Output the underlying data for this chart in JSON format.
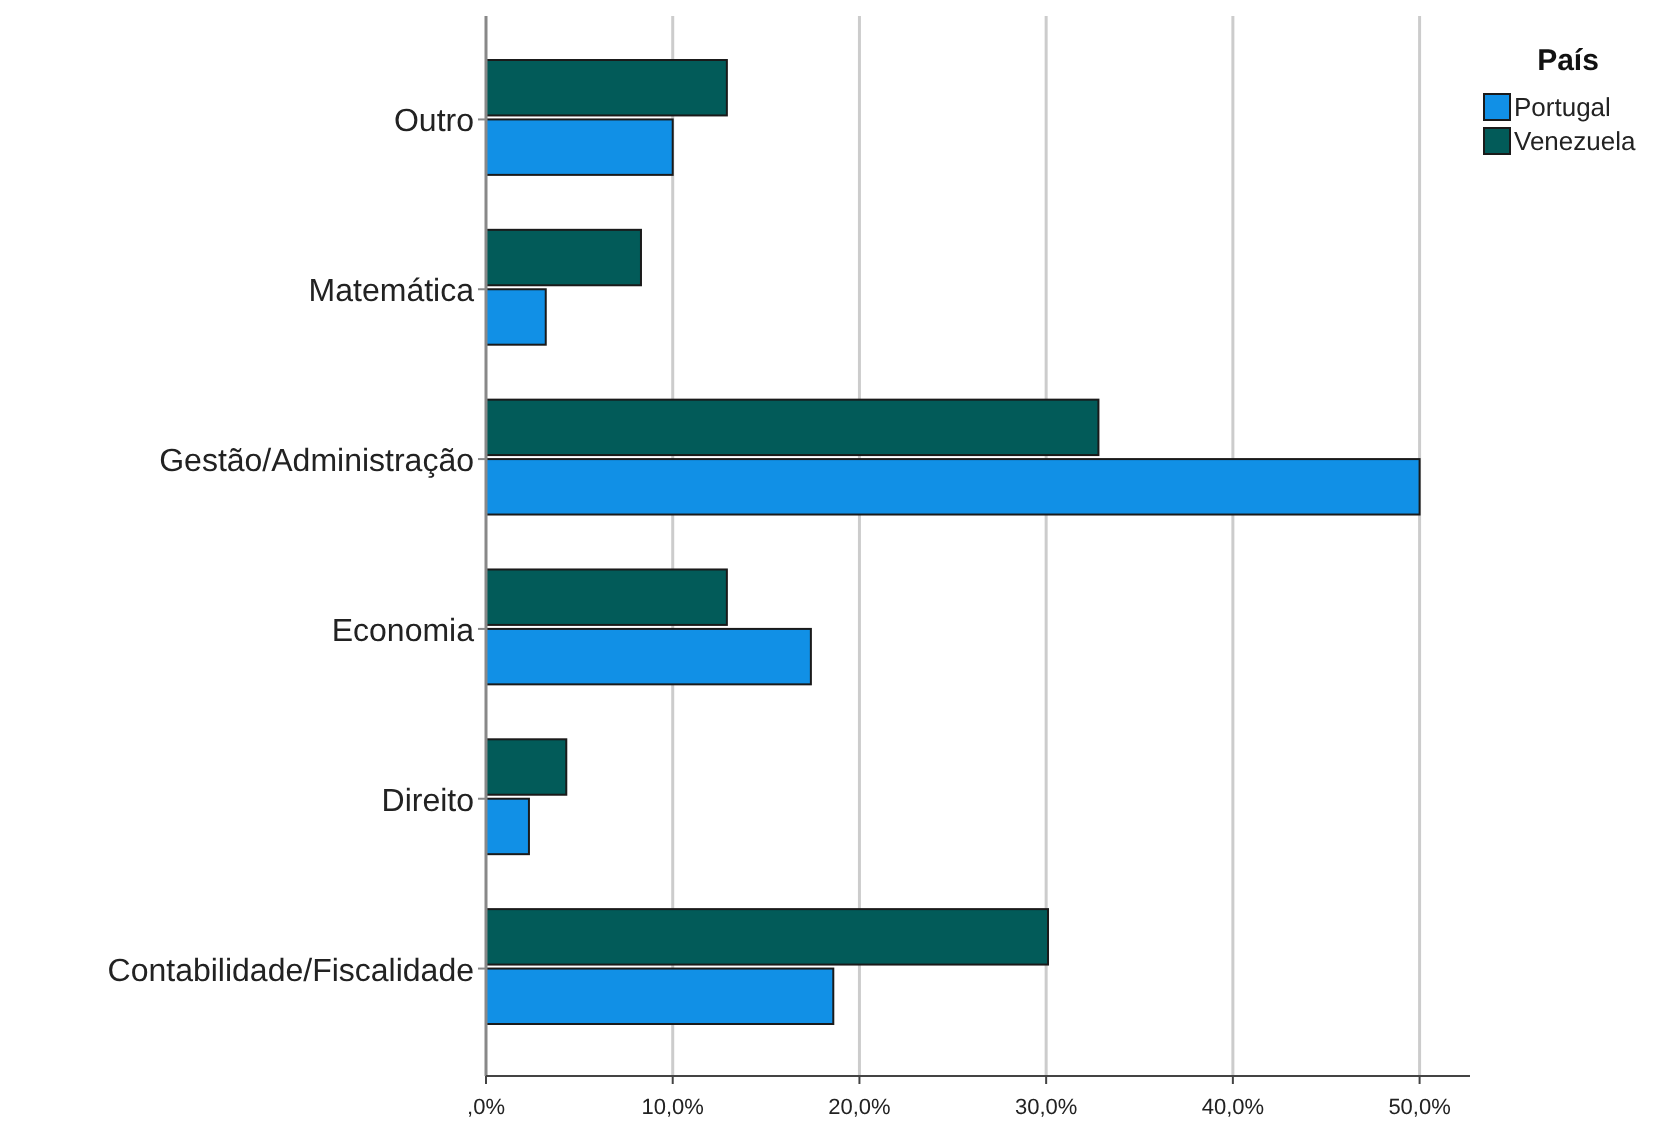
{
  "chart_data": {
    "type": "bar",
    "orientation": "horizontal",
    "categories": [
      "Outro",
      "Matemática",
      "Gestão/Administração",
      "Economia",
      "Direito",
      "Contabilidade/Fiscalidade"
    ],
    "series": [
      {
        "name": "Portugal",
        "color": "#1190e6",
        "values": [
          10.0,
          3.2,
          50.0,
          17.4,
          2.3,
          18.6
        ]
      },
      {
        "name": "Venezuela",
        "color": "#025b59",
        "values": [
          12.9,
          8.3,
          32.8,
          12.9,
          4.3,
          30.1
        ]
      }
    ],
    "legend_title": "País",
    "legend": "top right",
    "grid": "x",
    "xlim": [
      0,
      52.7
    ],
    "xticks": [
      {
        "value": 0,
        "label": ",0%"
      },
      {
        "value": 10,
        "label": "10,0%"
      },
      {
        "value": 20,
        "label": "20,0%"
      },
      {
        "value": 30,
        "label": "30,0%"
      },
      {
        "value": 40,
        "label": "40,0%"
      },
      {
        "value": 50,
        "label": "50,0%"
      }
    ]
  }
}
